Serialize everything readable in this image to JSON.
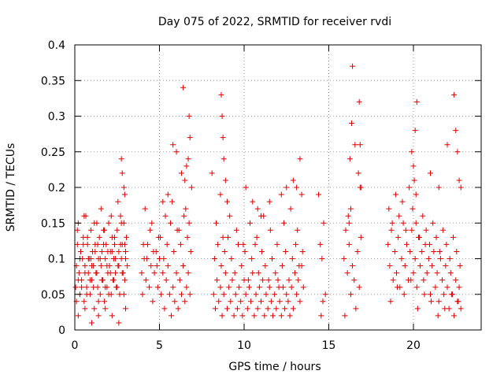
{
  "chart_data": {
    "type": "scatter",
    "title": "Day 075 of 2022, SRMTID for receiver rvdi",
    "xlabel": "GPS time / hours",
    "ylabel": "SRMTID / TECUs",
    "xlim": [
      0,
      24
    ],
    "ylim": [
      0,
      0.4
    ],
    "xticks": [
      0,
      5,
      10,
      15,
      20
    ],
    "xtick_labels": [
      "0",
      "5",
      "10",
      "15",
      "20"
    ],
    "yticks": [
      0,
      0.05,
      0.1,
      0.15,
      0.2,
      0.25,
      0.3,
      0.35,
      0.4
    ],
    "ytick_labels": [
      "0",
      "0.05",
      "0.1",
      "0.15",
      "0.2",
      "0.25",
      "0.3",
      "0.35",
      "0.4"
    ],
    "grid": true,
    "marker": "plus",
    "color": "#e00000",
    "series": [
      {
        "x": [
          0.05,
          0.1,
          0.15,
          0.2,
          0.25,
          0.3,
          0.35,
          0.4,
          0.45,
          0.5,
          0.55,
          0.6,
          0.65,
          0.7,
          0.75,
          0.8,
          0.85,
          0.9,
          0.95,
          1.0,
          1.05,
          1.1,
          1.15,
          1.2,
          1.25,
          1.3,
          1.35,
          1.4,
          1.45,
          1.5,
          1.55,
          1.6,
          1.65,
          1.7,
          1.75,
          1.8,
          1.85,
          1.9,
          1.95,
          2.0,
          2.05,
          2.1,
          2.15,
          2.2,
          2.25,
          2.3,
          2.35,
          2.4,
          2.45,
          2.5,
          2.55,
          2.6,
          2.65,
          2.7,
          2.75,
          2.8,
          2.85,
          2.9,
          2.95,
          3.0,
          3.05,
          3.1,
          0.1,
          0.2,
          0.3,
          0.4,
          0.5,
          0.6,
          0.7,
          0.8,
          0.9,
          1.0,
          1.1,
          1.2,
          1.3,
          1.4,
          1.5,
          1.6,
          1.7,
          1.8,
          1.9,
          2.0,
          2.1,
          2.2,
          2.3,
          2.4,
          2.5,
          2.6,
          2.7,
          2.8,
          2.9,
          3.0,
          0.15,
          0.35,
          0.55,
          0.75,
          0.95,
          1.15,
          1.35,
          1.55,
          1.75,
          1.95,
          2.15,
          2.35,
          2.55,
          2.75,
          2.95,
          0.2,
          0.6,
          1.0,
          1.4,
          1.8,
          2.2,
          2.6,
          3.0,
          2.75,
          2.8,
          2.9,
          2.95,
          3.95,
          4.0,
          4.1,
          4.2,
          4.3,
          4.4,
          4.5,
          4.6,
          4.7,
          4.8,
          4.9,
          5.0,
          5.1,
          5.2,
          5.3,
          5.4,
          5.5,
          5.6,
          5.7,
          5.8,
          5.9,
          6.0,
          6.1,
          6.2,
          6.3,
          6.4,
          6.5,
          6.6,
          6.7,
          6.8,
          4.05,
          4.25,
          4.45,
          4.65,
          4.85,
          5.05,
          5.25,
          5.45,
          5.65,
          5.85,
          6.05,
          6.25,
          6.45,
          6.65,
          6.85,
          4.15,
          4.55,
          4.95,
          5.35,
          5.75,
          6.15,
          6.55,
          6.75,
          5.8,
          6.0,
          6.3,
          6.5,
          6.7,
          6.75,
          6.8,
          6.6,
          6.9,
          6.4,
          5.5,
          5.2,
          8.2,
          8.3,
          8.4,
          8.5,
          8.6,
          8.7,
          8.8,
          8.9,
          9.0,
          9.1,
          9.2,
          9.3,
          9.4,
          9.5,
          9.6,
          9.7,
          9.8,
          9.9,
          10.0,
          10.1,
          10.2,
          10.3,
          10.4,
          10.5,
          10.6,
          10.7,
          10.8,
          10.9,
          11.0,
          11.1,
          11.2,
          11.3,
          11.4,
          11.5,
          11.6,
          11.7,
          11.8,
          11.9,
          12.0,
          12.1,
          12.2,
          12.3,
          12.4,
          12.5,
          12.6,
          12.7,
          12.8,
          12.9,
          13.0,
          13.1,
          13.2,
          13.3,
          13.4,
          13.5,
          8.25,
          8.45,
          8.65,
          8.85,
          9.05,
          9.25,
          9.45,
          9.65,
          9.85,
          10.05,
          10.25,
          10.45,
          10.65,
          10.85,
          11.05,
          11.25,
          11.45,
          11.65,
          11.85,
          12.05,
          12.25,
          12.45,
          12.65,
          12.85,
          13.05,
          13.25,
          13.45,
          8.35,
          8.75,
          9.15,
          9.55,
          9.95,
          10.35,
          10.75,
          11.15,
          11.55,
          11.95,
          12.35,
          12.75,
          13.15,
          8.1,
          8.6,
          8.65,
          8.7,
          8.75,
          8.8,
          8.9,
          9.0,
          10.1,
          10.5,
          10.8,
          11.0,
          11.5,
          12.2,
          12.5,
          12.9,
          13.1,
          13.3,
          13.4,
          14.4,
          14.5,
          14.6,
          14.7,
          14.8,
          14.55,
          14.65,
          15.9,
          16.0,
          16.1,
          16.2,
          16.3,
          16.4,
          16.5,
          16.6,
          16.7,
          16.8,
          16.9,
          15.95,
          16.15,
          16.35,
          16.55,
          16.75,
          16.85,
          16.25,
          16.4,
          16.8,
          16.85,
          16.9,
          16.2,
          16.3,
          18.5,
          18.6,
          18.7,
          18.8,
          18.9,
          19.0,
          19.1,
          19.2,
          19.3,
          19.4,
          19.5,
          19.6,
          19.7,
          19.8,
          19.9,
          20.0,
          20.1,
          20.2,
          20.3,
          20.4,
          20.5,
          20.6,
          20.7,
          20.8,
          20.9,
          21.0,
          21.1,
          21.2,
          21.3,
          21.4,
          21.5,
          21.6,
          21.7,
          21.8,
          21.9,
          22.0,
          22.1,
          22.2,
          22.3,
          22.4,
          22.5,
          22.6,
          22.7,
          22.8,
          18.55,
          18.75,
          18.95,
          19.15,
          19.35,
          19.55,
          19.75,
          19.95,
          20.15,
          20.35,
          20.55,
          20.75,
          20.95,
          21.15,
          21.35,
          21.55,
          21.75,
          21.95,
          22.15,
          22.35,
          22.55,
          22.75,
          18.65,
          19.05,
          19.45,
          19.85,
          20.25,
          20.65,
          21.05,
          21.45,
          21.85,
          22.25,
          22.65,
          19.9,
          20.0,
          20.1,
          20.2,
          20.05,
          20.15,
          21.0,
          21.5,
          22.0,
          22.4,
          22.5,
          22.6,
          22.7,
          22.8
        ],
        "y": [
          0.06,
          0.09,
          0.12,
          0.15,
          0.08,
          0.05,
          0.11,
          0.07,
          0.1,
          0.13,
          0.04,
          0.09,
          0.16,
          0.06,
          0.12,
          0.08,
          0.1,
          0.05,
          0.14,
          0.07,
          0.11,
          0.09,
          0.03,
          0.12,
          0.08,
          0.15,
          0.06,
          0.1,
          0.13,
          0.05,
          0.09,
          0.11,
          0.07,
          0.14,
          0.04,
          0.1,
          0.12,
          0.06,
          0.08,
          0.15,
          0.09,
          0.11,
          0.05,
          0.13,
          0.07,
          0.1,
          0.12,
          0.08,
          0.06,
          0.14,
          0.09,
          0.11,
          0.05,
          0.16,
          0.1,
          0.12,
          0.08,
          0.15,
          0.07,
          0.11,
          0.13,
          0.09,
          0.04,
          0.07,
          0.1,
          0.06,
          0.12,
          0.08,
          0.05,
          0.1,
          0.07,
          0.09,
          0.06,
          0.11,
          0.08,
          0.04,
          0.1,
          0.07,
          0.12,
          0.06,
          0.09,
          0.05,
          0.08,
          0.11,
          0.07,
          0.1,
          0.06,
          0.09,
          0.12,
          0.08,
          0.05,
          0.1,
          0.14,
          0.11,
          0.16,
          0.13,
          0.1,
          0.15,
          0.12,
          0.17,
          0.14,
          0.11,
          0.16,
          0.13,
          0.18,
          0.15,
          0.12,
          0.02,
          0.03,
          0.01,
          0.02,
          0.03,
          0.02,
          0.01,
          0.03,
          0.24,
          0.22,
          0.2,
          0.19,
          0.08,
          0.05,
          0.1,
          0.07,
          0.12,
          0.06,
          0.09,
          0.04,
          0.08,
          0.11,
          0.06,
          0.1,
          0.05,
          0.08,
          0.03,
          0.07,
          0.09,
          0.05,
          0.02,
          0.06,
          0.04,
          0.08,
          0.03,
          0.07,
          0.05,
          0.09,
          0.04,
          0.06,
          0.08,
          0.05,
          0.12,
          0.1,
          0.14,
          0.11,
          0.09,
          0.13,
          0.1,
          0.12,
          0.15,
          0.11,
          0.14,
          0.12,
          0.16,
          0.13,
          0.11,
          0.17,
          0.15,
          0.13,
          0.16,
          0.18,
          0.14,
          0.17,
          0.15,
          0.26,
          0.25,
          0.22,
          0.21,
          0.24,
          0.3,
          0.27,
          0.23,
          0.2,
          0.34,
          0.19,
          0.18,
          0.05,
          0.03,
          0.07,
          0.04,
          0.06,
          0.02,
          0.05,
          0.08,
          0.03,
          0.06,
          0.04,
          0.07,
          0.02,
          0.05,
          0.03,
          0.06,
          0.04,
          0.02,
          0.07,
          0.05,
          0.03,
          0.06,
          0.04,
          0.08,
          0.02,
          0.05,
          0.03,
          0.06,
          0.04,
          0.07,
          0.02,
          0.05,
          0.03,
          0.06,
          0.04,
          0.02,
          0.05,
          0.03,
          0.07,
          0.04,
          0.02,
          0.06,
          0.03,
          0.05,
          0.04,
          0.02,
          0.06,
          0.03,
          0.08,
          0.05,
          0.07,
          0.04,
          0.09,
          0.06,
          0.1,
          0.12,
          0.09,
          0.11,
          0.13,
          0.1,
          0.08,
          0.12,
          0.09,
          0.11,
          0.07,
          0.1,
          0.12,
          0.08,
          0.11,
          0.09,
          0.07,
          0.1,
          0.08,
          0.06,
          0.09,
          0.11,
          0.07,
          0.1,
          0.12,
          0.09,
          0.11,
          0.15,
          0.13,
          0.16,
          0.14,
          0.12,
          0.15,
          0.13,
          0.16,
          0.14,
          0.12,
          0.15,
          0.17,
          0.14,
          0.22,
          0.19,
          0.33,
          0.3,
          0.27,
          0.24,
          0.21,
          0.18,
          0.2,
          0.18,
          0.17,
          0.16,
          0.18,
          0.19,
          0.2,
          0.21,
          0.2,
          0.24,
          0.19,
          0.19,
          0.12,
          0.1,
          0.15,
          0.05,
          0.02,
          0.04,
          0.1,
          0.14,
          0.08,
          0.12,
          0.05,
          0.09,
          0.07,
          0.03,
          0.11,
          0.06,
          0.13,
          0.02,
          0.16,
          0.29,
          0.26,
          0.22,
          0.2,
          0.24,
          0.37,
          0.32,
          0.26,
          0.2,
          0.15,
          0.17,
          0.12,
          0.09,
          0.14,
          0.07,
          0.11,
          0.08,
          0.13,
          0.06,
          0.1,
          0.15,
          0.09,
          0.12,
          0.07,
          0.11,
          0.14,
          0.08,
          0.1,
          0.06,
          0.13,
          0.09,
          0.11,
          0.07,
          0.12,
          0.08,
          0.1,
          0.05,
          0.09,
          0.11,
          0.06,
          0.08,
          0.04,
          0.1,
          0.07,
          0.05,
          0.09,
          0.06,
          0.03,
          0.08,
          0.05,
          0.02,
          0.07,
          0.04,
          0.06,
          0.03,
          0.17,
          0.15,
          0.19,
          0.16,
          0.18,
          0.14,
          0.2,
          0.17,
          0.15,
          0.13,
          0.16,
          0.14,
          0.12,
          0.15,
          0.13,
          0.11,
          0.14,
          0.12,
          0.1,
          0.13,
          0.11,
          0.09,
          0.04,
          0.06,
          0.05,
          0.07,
          0.03,
          0.05,
          0.04,
          0.02,
          0.03,
          0.05,
          0.04,
          0.25,
          0.23,
          0.28,
          0.32,
          0.21,
          0.19,
          0.22,
          0.2,
          0.26,
          0.33,
          0.28,
          0.25,
          0.21,
          0.2
        ]
      }
    ]
  }
}
